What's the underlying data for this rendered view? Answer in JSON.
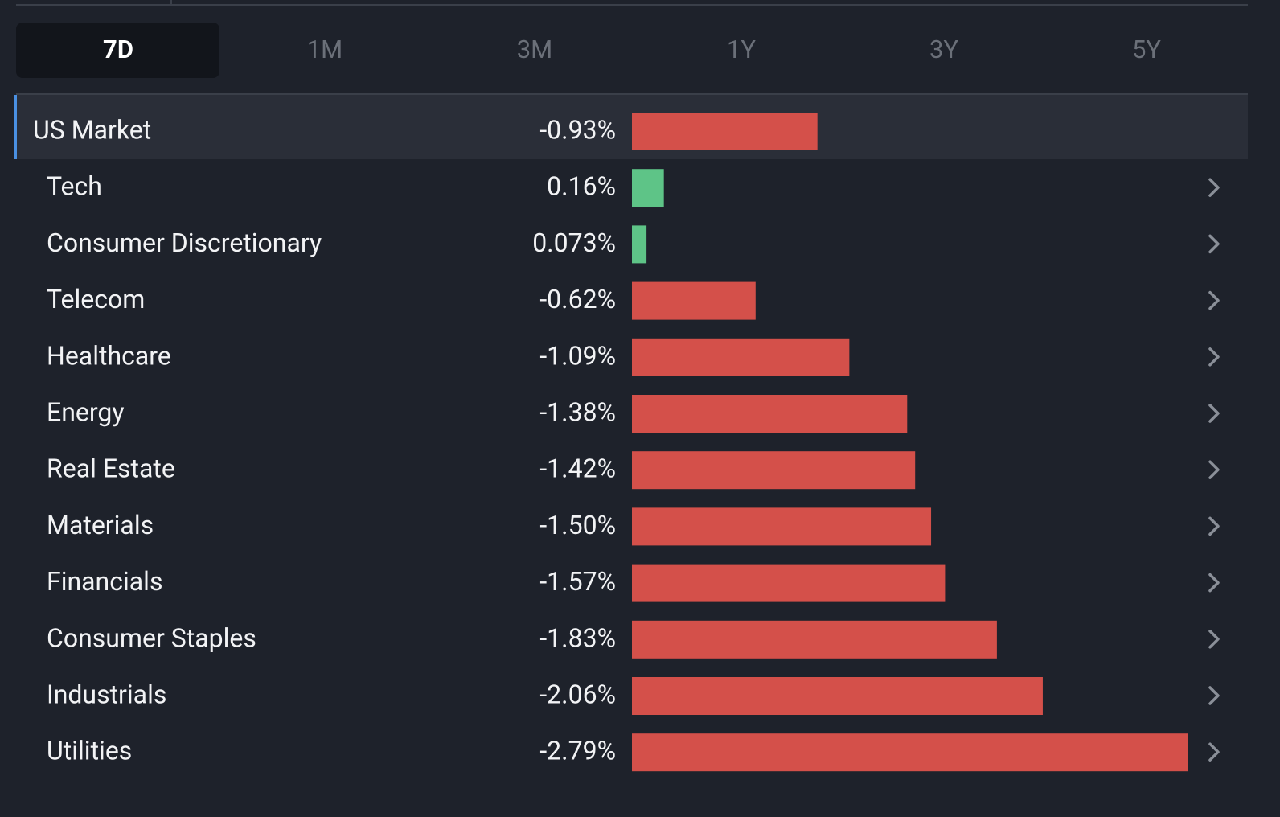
{
  "tabs": [
    "7D",
    "1M",
    "3M",
    "1Y",
    "3Y",
    "5Y"
  ],
  "chart_data": {
    "type": "bar",
    "orientation": "horizontal",
    "categories": [
      "US Market",
      "Tech",
      "Consumer Discretionary",
      "Telecom",
      "Healthcare",
      "Energy",
      "Real Estate",
      "Materials",
      "Financials",
      "Consumer Staples",
      "Industrials",
      "Utilities"
    ],
    "values": [
      -0.93,
      0.16,
      0.073,
      -0.62,
      -1.09,
      -1.38,
      -1.42,
      -1.5,
      -1.57,
      -1.83,
      -2.06,
      -2.79
    ],
    "value_labels": [
      "-0.93%",
      "0.16%",
      "0.073%",
      "-0.62%",
      "-1.09%",
      "-1.38%",
      "-1.42%",
      "-1.50%",
      "-1.57%",
      "-1.83%",
      "-2.06%",
      "-2.79%"
    ],
    "colors": {
      "negative": "#d4504a",
      "positive": "#5ec487"
    }
  }
}
